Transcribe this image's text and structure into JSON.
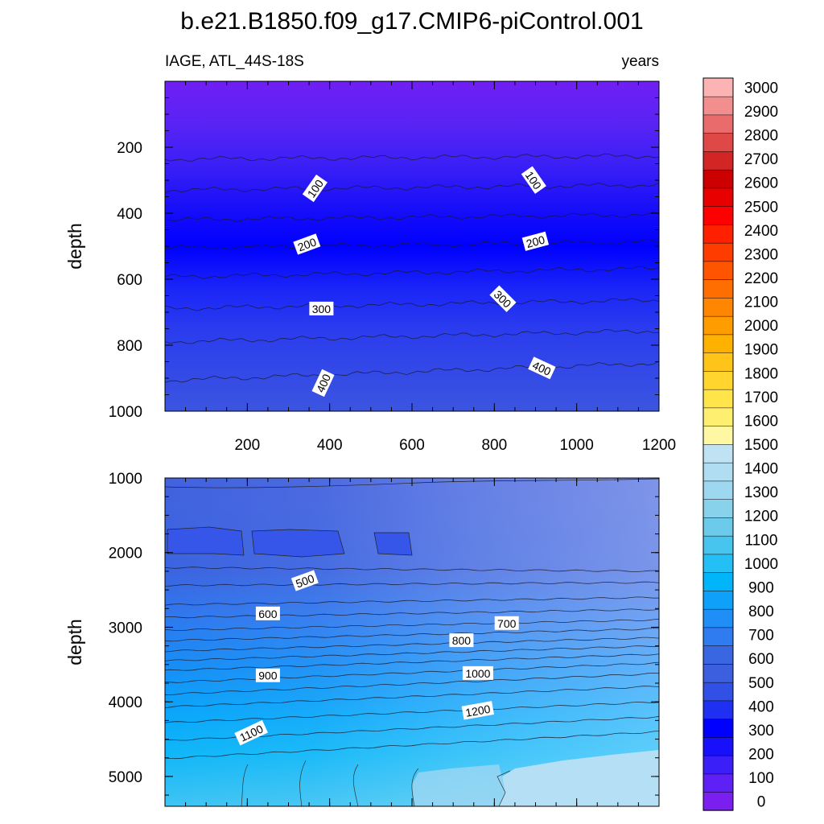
{
  "chart_data": {
    "type": "contour",
    "title": "b.e21.B1850.f09_g17.CMIP6-piControl.001",
    "variable_label": "IAGE, ATL_44S-18S",
    "units_label": "years",
    "colorbar": {
      "levels": [
        0,
        100,
        200,
        300,
        400,
        500,
        600,
        700,
        800,
        900,
        1000,
        1100,
        1200,
        1300,
        1400,
        1500,
        1600,
        1700,
        1800,
        1900,
        2000,
        2100,
        2200,
        2300,
        2400,
        2500,
        2600,
        2700,
        2800,
        2900,
        3000
      ],
      "labels": [
        "0",
        "100",
        "200",
        "300",
        "400",
        "500",
        "600",
        "700",
        "800",
        "900",
        "1000",
        "1100",
        "1200",
        "1300",
        "1400",
        "1500",
        "1600",
        "1700",
        "1800",
        "1900",
        "2000",
        "2100",
        "2200",
        "2300",
        "2400",
        "2500",
        "2600",
        "2700",
        "2800",
        "2900",
        "3000"
      ],
      "colors": [
        "#7a1ff0",
        "#5f20f5",
        "#3a1ff8",
        "#1910fb",
        "#0000ff",
        "#1f30f2",
        "#3050e6",
        "#3c5fe0",
        "#3b66e2",
        "#2f7bf0",
        "#1f8ff7",
        "#0fa0fa",
        "#00b5f9",
        "#24c0f5",
        "#48c5ee",
        "#6ccbeb",
        "#88d2ec",
        "#9dd8f0",
        "#b0ddf2",
        "#bfe3f3",
        "#fff8a3",
        "#ffef70",
        "#ffe44a",
        "#ffd52e",
        "#ffc41a",
        "#ffb100",
        "#ff9d00",
        "#ff8600",
        "#ff6e00",
        "#ff5500",
        "#ff3c00",
        "#ff2000",
        "#ff0000",
        "#e80000",
        "#cc0000",
        "#d42525",
        "#e04848",
        "#ea6b6b",
        "#f38e8e",
        "#fbb3b3"
      ]
    },
    "panels": [
      {
        "name": "upper",
        "xlabel": "",
        "ylabel": "depth",
        "xlim": [
          0,
          1200
        ],
        "ylim": [
          0,
          1000
        ],
        "y_inverted": true,
        "xticks": [
          200,
          400,
          600,
          800,
          1000,
          1200
        ],
        "xtick_labels": [
          "200",
          "400",
          "600",
          "800",
          "1000",
          "1200"
        ],
        "yticks": [
          200,
          400,
          600,
          800,
          1000
        ],
        "ytick_labels": [
          "200",
          "400",
          "600",
          "800",
          "1000"
        ],
        "band_fill_colors": [
          "#6f1ff2",
          "#5a23f5",
          "#3c20f6",
          "#1a10f8",
          "#0000ff",
          "#1a24f8",
          "#2a3cee",
          "#3348e7",
          "#3b55e0"
        ],
        "contour_lines": [
          {
            "level": 50,
            "y_left": 236,
            "y_right": 226
          },
          {
            "level": 100,
            "y_left": 330,
            "y_right": 314
          },
          {
            "level": 150,
            "y_left": 420,
            "y_right": 404
          },
          {
            "level": 200,
            "y_left": 505,
            "y_right": 486
          },
          {
            "level": 250,
            "y_left": 593,
            "y_right": 567
          },
          {
            "level": 300,
            "y_left": 689,
            "y_right": 663
          },
          {
            "level": 350,
            "y_left": 790,
            "y_right": 756
          },
          {
            "level": 400,
            "y_left": 907,
            "y_right": 854
          }
        ],
        "contour_labels": [
          {
            "text": "100",
            "x": 365,
            "y": 325,
            "angle": -55
          },
          {
            "text": "100",
            "x": 895,
            "y": 300,
            "angle": 55
          },
          {
            "text": "200",
            "x": 345,
            "y": 495,
            "angle": -20
          },
          {
            "text": "200",
            "x": 900,
            "y": 486,
            "angle": -15
          },
          {
            "text": "300",
            "x": 380,
            "y": 690,
            "angle": 0
          },
          {
            "text": "300",
            "x": 820,
            "y": 660,
            "angle": 45
          },
          {
            "text": "400",
            "x": 385,
            "y": 915,
            "angle": -65
          },
          {
            "text": "400",
            "x": 915,
            "y": 870,
            "angle": 25
          }
        ]
      },
      {
        "name": "lower",
        "xlabel": "",
        "ylabel": "depth",
        "xlim": [
          0,
          1200
        ],
        "ylim": [
          1000,
          5400
        ],
        "y_inverted": true,
        "xticks": [],
        "xtick_labels": [],
        "yticks": [
          1000,
          2000,
          3000,
          4000,
          5000
        ],
        "ytick_labels": [
          "1000",
          "2000",
          "3000",
          "4000",
          "5000"
        ],
        "contour_lines": [
          {
            "level": 500,
            "y_left": 2200,
            "y_right": 2250
          },
          {
            "level": 550,
            "y_left": 2440,
            "y_right": 2400
          },
          {
            "level": 600,
            "y_left": 2700,
            "y_right": 2600
          },
          {
            "level": 650,
            "y_left": 2870,
            "y_right": 2760
          },
          {
            "level": 700,
            "y_left": 3040,
            "y_right": 2900
          },
          {
            "level": 750,
            "y_left": 3180,
            "y_right": 3020
          },
          {
            "level": 800,
            "y_left": 3320,
            "y_right": 3140
          },
          {
            "level": 850,
            "y_left": 3450,
            "y_right": 3250
          },
          {
            "level": 900,
            "y_left": 3580,
            "y_right": 3360
          },
          {
            "level": 950,
            "y_left": 3740,
            "y_right": 3480
          },
          {
            "level": 1000,
            "y_left": 3900,
            "y_right": 3620
          },
          {
            "level": 1050,
            "y_left": 4070,
            "y_right": 3790
          },
          {
            "level": 1100,
            "y_left": 4280,
            "y_right": 4000
          },
          {
            "level": 1150,
            "y_left": 4520,
            "y_right": 4200
          },
          {
            "level": 1200,
            "y_left": 4760,
            "y_right": 4400
          }
        ],
        "contour_labels": [
          {
            "text": "500",
            "x": 340,
            "y": 2380,
            "angle": -20
          },
          {
            "text": "600",
            "x": 250,
            "y": 2820,
            "angle": 0
          },
          {
            "text": "700",
            "x": 830,
            "y": 2950,
            "angle": 0
          },
          {
            "text": "800",
            "x": 720,
            "y": 3180,
            "angle": 0
          },
          {
            "text": "900",
            "x": 250,
            "y": 3650,
            "angle": 0
          },
          {
            "text": "1000",
            "x": 760,
            "y": 3620,
            "angle": 0
          },
          {
            "text": "1100",
            "x": 210,
            "y": 4420,
            "angle": -25
          },
          {
            "text": "1200",
            "x": 760,
            "y": 4120,
            "angle": -10
          }
        ]
      }
    ]
  }
}
